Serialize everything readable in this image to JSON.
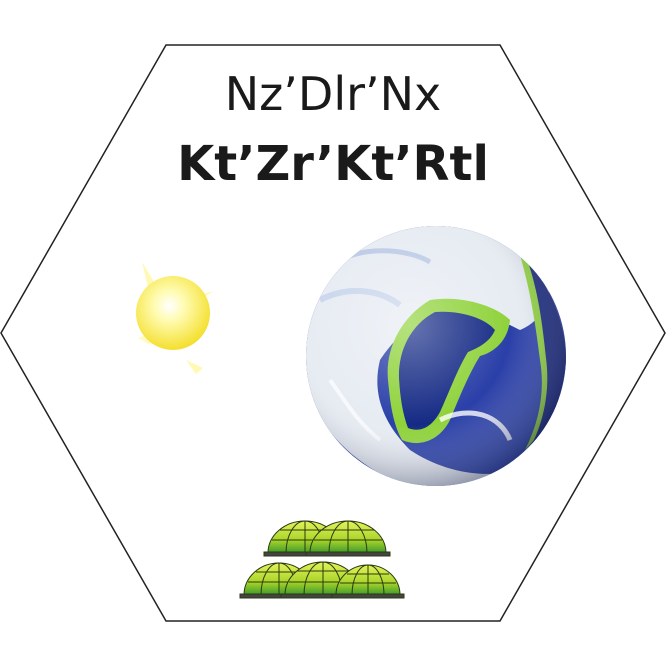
{
  "tile": {
    "name_primary": "Nz’Dlr’Nx",
    "name_secondary": "Kt’Zr’Kt’Rtl",
    "icons": [
      "sun-icon",
      "planet-icon",
      "dome-colony-icon"
    ],
    "colors": {
      "hex_fill": "#ffffff",
      "hex_stroke": "#222222",
      "sun": "#fff36b",
      "ocean": "#1a2f8f",
      "land_edge": "#8fd23a",
      "cloud": "#e6ecf4",
      "dome": "#b8dc2a"
    }
  }
}
